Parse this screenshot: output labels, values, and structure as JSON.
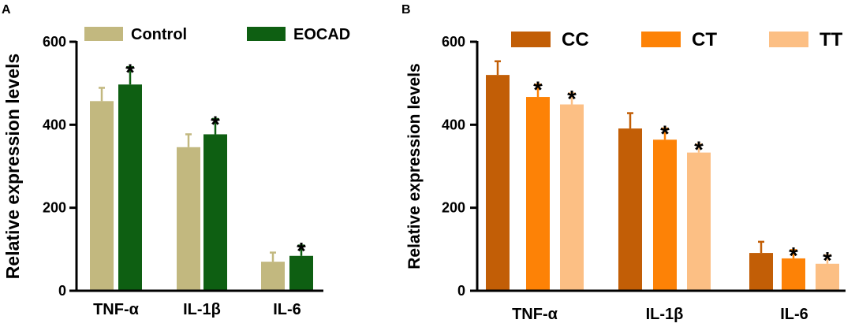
{
  "chart_data": [
    {
      "panel": "A",
      "type": "bar",
      "title": "",
      "xlabel": "",
      "ylabel": "Relative expression levels",
      "ylim": [
        0,
        600
      ],
      "yticks": [
        0,
        200,
        400,
        600
      ],
      "categories": [
        "TNF-α",
        "IL-1β",
        "IL-6"
      ],
      "legend_position": "top",
      "series": [
        {
          "name": "Control",
          "color": "#c2b87f",
          "values": [
            457,
            346,
            70
          ],
          "errors": [
            32,
            31,
            22
          ],
          "significant": [
            false,
            false,
            false
          ]
        },
        {
          "name": "EOCAD",
          "color": "#0e5f12",
          "values": [
            497,
            377,
            84
          ],
          "errors": [
            42,
            37,
            25
          ],
          "significant": [
            true,
            true,
            true
          ]
        }
      ],
      "significance_marker": "*"
    },
    {
      "panel": "B",
      "type": "bar",
      "title": "",
      "xlabel": "",
      "ylabel": "Relative expression levels",
      "ylim": [
        0,
        600
      ],
      "yticks": [
        0,
        200,
        400,
        600
      ],
      "categories": [
        "TNF-α",
        "IL-1β",
        "IL-6"
      ],
      "legend_position": "top",
      "series": [
        {
          "name": "CC",
          "color": "#c25e06",
          "values": [
            520,
            391,
            91
          ],
          "errors": [
            33,
            37,
            27
          ],
          "significant": [
            false,
            false,
            false
          ]
        },
        {
          "name": "CT",
          "color": "#fd8206",
          "values": [
            467,
            364,
            78
          ],
          "errors": [
            30,
            27,
            20
          ],
          "significant": [
            true,
            true,
            true
          ]
        },
        {
          "name": "TT",
          "color": "#fcbf84",
          "values": [
            449,
            333,
            65
          ],
          "errors": [
            27,
            20,
            21
          ],
          "significant": [
            true,
            true,
            true
          ]
        }
      ],
      "significance_marker": "*"
    }
  ]
}
